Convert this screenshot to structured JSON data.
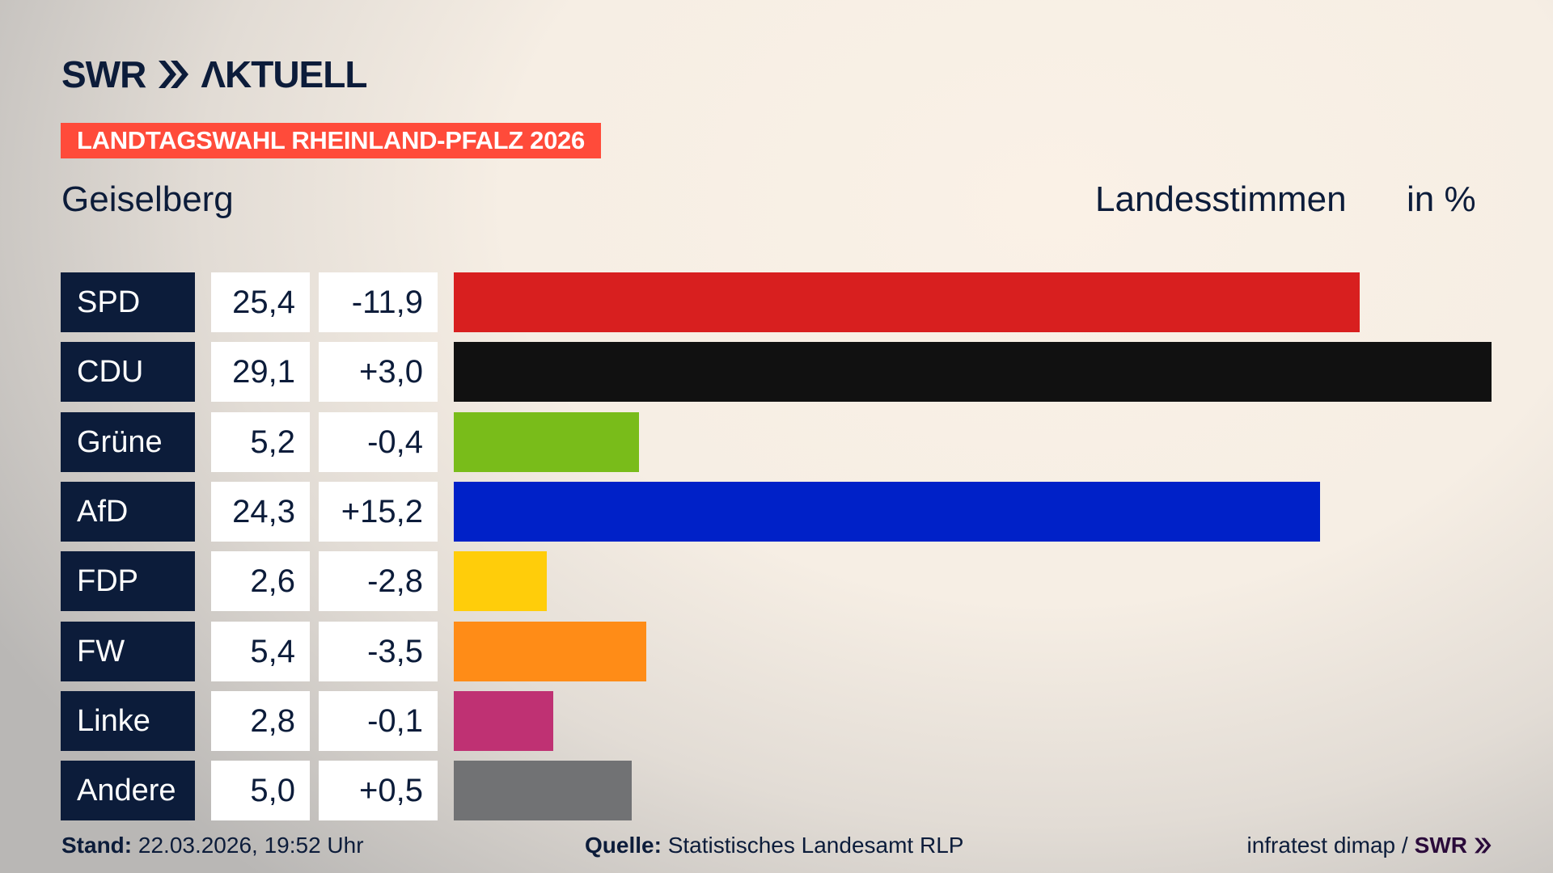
{
  "header": {
    "logo_text": "SWR AKTUELL",
    "banner": "LANDTAGSWAHL RHEINLAND-PFALZ 2026",
    "place": "Geiselberg",
    "metric": "Landesstimmen",
    "unit": "in %"
  },
  "colors": {
    "banner": "#ff4b3a",
    "navy": "#0c1c3a"
  },
  "chart_data": {
    "type": "bar",
    "orientation": "horizontal",
    "categories": [
      "SPD",
      "CDU",
      "Grüne",
      "AfD",
      "FDP",
      "FW",
      "Linke",
      "Andere"
    ],
    "values": [
      25.4,
      29.1,
      5.2,
      24.3,
      2.6,
      5.4,
      2.8,
      5.0
    ],
    "value_labels": [
      "25,4",
      "29,1",
      "5,2",
      "24,3",
      "2,6",
      "5,4",
      "2,8",
      "5,0"
    ],
    "diff_labels": [
      "-11,9",
      "+3,0",
      "-0,4",
      "+15,2",
      "-2,8",
      "-3,5",
      "-0,1",
      "+0,5"
    ],
    "diffs": [
      -11.9,
      3.0,
      -0.4,
      15.2,
      -2.8,
      -3.5,
      -0.1,
      0.5
    ],
    "colors": [
      "#d81f1f",
      "#111111",
      "#79bc1a",
      "#0021c8",
      "#ffcd0a",
      "#ff8c17",
      "#bf3173",
      "#717274"
    ],
    "title": "Geiselberg",
    "ylabel": "Landesstimmen in %"
  },
  "footer": {
    "stand_label": "Stand:",
    "stand_value": "22.03.2026, 19:52 Uhr",
    "source_label": "Quelle:",
    "source_value": "Statistisches Landesamt RLP",
    "credit": "infratest dimap /",
    "credit_logo": "SWR"
  }
}
